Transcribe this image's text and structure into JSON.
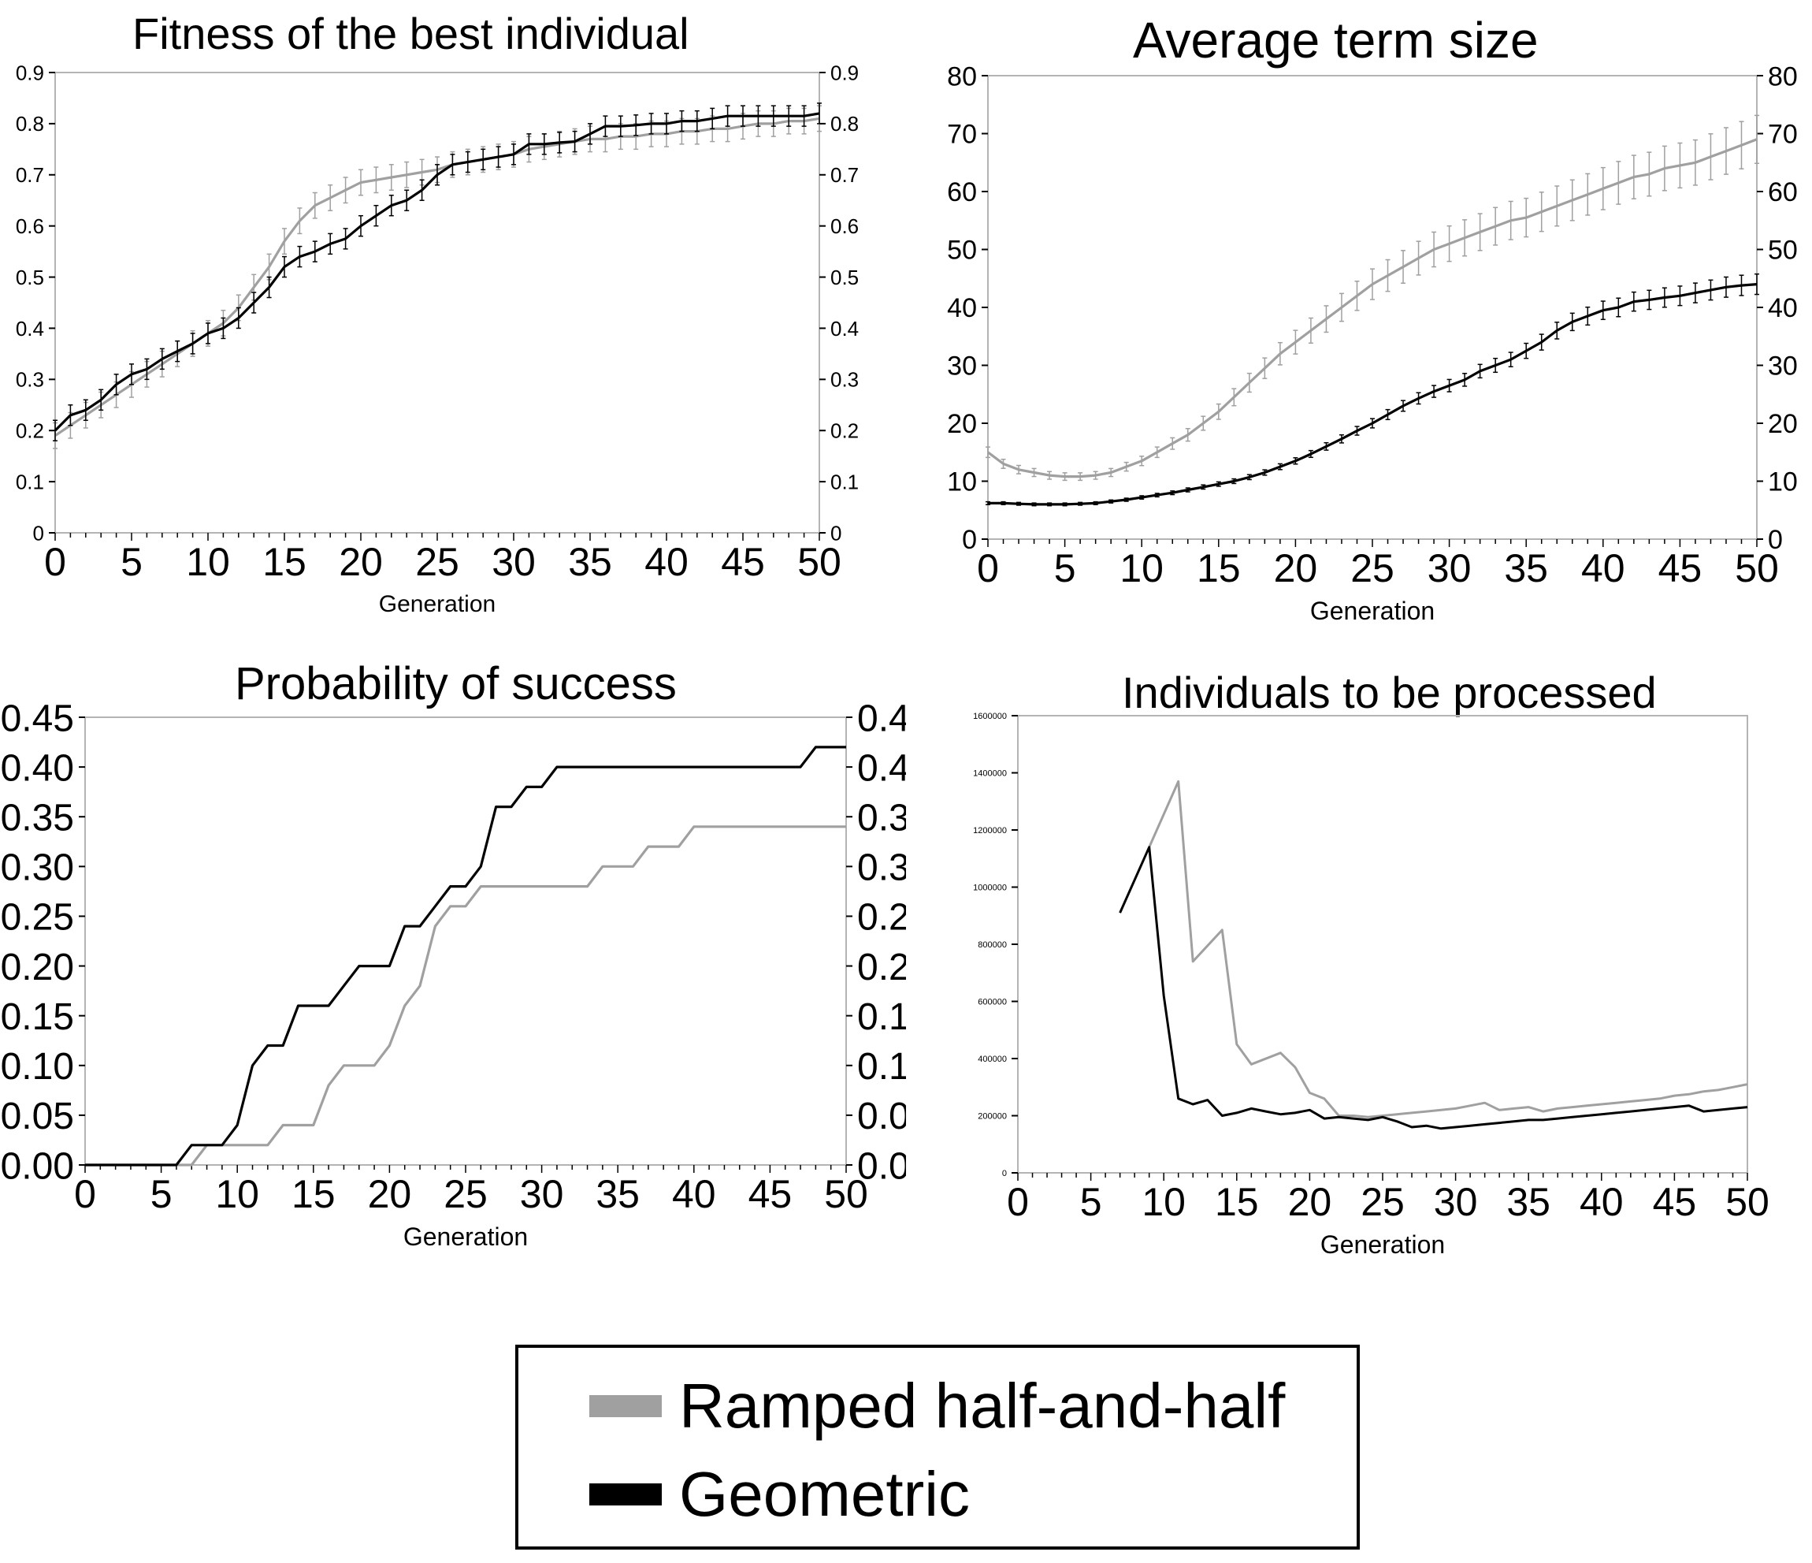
{
  "colors": {
    "ramped": "#a0a0a0",
    "geometric": "#000000"
  },
  "legend": {
    "ramped_label": "Ramped half-and-half",
    "geometric_label": "Geometric"
  },
  "chart_data": [
    {
      "type": "line",
      "title": "Fitness of the best individual",
      "xlabel": "Generation",
      "ylabel": "",
      "xlim": [
        0,
        50
      ],
      "ylim": [
        0,
        0.9
      ],
      "x_ticks": [
        "0",
        "5",
        "10",
        "15",
        "20",
        "25",
        "30",
        "35",
        "40",
        "45",
        "50"
      ],
      "y_ticks": [
        "0",
        "0.1",
        "0.2",
        "0.3",
        "0.4",
        "0.5",
        "0.6",
        "0.7",
        "0.8",
        "0.9"
      ],
      "error_bars": true,
      "grid": false,
      "x": [
        0,
        1,
        2,
        3,
        4,
        5,
        6,
        7,
        8,
        9,
        10,
        11,
        12,
        13,
        14,
        15,
        16,
        17,
        18,
        19,
        20,
        21,
        22,
        23,
        24,
        25,
        26,
        27,
        28,
        29,
        30,
        31,
        32,
        33,
        34,
        35,
        36,
        37,
        38,
        39,
        40,
        41,
        42,
        43,
        44,
        45,
        46,
        47,
        48,
        49,
        50
      ],
      "series": [
        {
          "name": "Ramped half-and-half",
          "color_key": "ramped",
          "err": 0.025,
          "values": [
            0.19,
            0.21,
            0.23,
            0.25,
            0.27,
            0.29,
            0.31,
            0.33,
            0.35,
            0.37,
            0.39,
            0.41,
            0.44,
            0.48,
            0.52,
            0.57,
            0.61,
            0.64,
            0.655,
            0.67,
            0.685,
            0.69,
            0.695,
            0.7,
            0.705,
            0.71,
            0.72,
            0.725,
            0.73,
            0.735,
            0.74,
            0.75,
            0.755,
            0.76,
            0.765,
            0.77,
            0.77,
            0.775,
            0.775,
            0.78,
            0.78,
            0.785,
            0.785,
            0.79,
            0.79,
            0.795,
            0.8,
            0.8,
            0.805,
            0.805,
            0.81
          ]
        },
        {
          "name": "Geometric",
          "color_key": "geometric",
          "err": 0.02,
          "values": [
            0.2,
            0.23,
            0.24,
            0.26,
            0.29,
            0.31,
            0.32,
            0.34,
            0.355,
            0.37,
            0.39,
            0.4,
            0.42,
            0.45,
            0.48,
            0.52,
            0.54,
            0.55,
            0.565,
            0.575,
            0.6,
            0.62,
            0.64,
            0.65,
            0.67,
            0.7,
            0.72,
            0.725,
            0.73,
            0.735,
            0.74,
            0.76,
            0.76,
            0.763,
            0.765,
            0.78,
            0.795,
            0.795,
            0.797,
            0.8,
            0.8,
            0.805,
            0.805,
            0.81,
            0.815,
            0.815,
            0.815,
            0.815,
            0.815,
            0.815,
            0.82
          ]
        }
      ]
    },
    {
      "type": "line",
      "title": "Average term size",
      "xlabel": "Generation",
      "ylabel": "",
      "xlim": [
        0,
        50
      ],
      "ylim": [
        0,
        80
      ],
      "x_ticks": [
        "0",
        "5",
        "10",
        "15",
        "20",
        "25",
        "30",
        "35",
        "40",
        "45",
        "50"
      ],
      "y_ticks": [
        "0",
        "10",
        "20",
        "30",
        "40",
        "50",
        "60",
        "70",
        "80"
      ],
      "error_bars": true,
      "grid": false,
      "x": [
        0,
        1,
        2,
        3,
        4,
        5,
        6,
        7,
        8,
        9,
        10,
        11,
        12,
        13,
        14,
        15,
        16,
        17,
        18,
        19,
        20,
        21,
        22,
        23,
        24,
        25,
        26,
        27,
        28,
        29,
        30,
        31,
        32,
        33,
        34,
        35,
        36,
        37,
        38,
        39,
        40,
        41,
        42,
        43,
        44,
        45,
        46,
        47,
        48,
        49,
        50
      ],
      "series": [
        {
          "name": "Ramped half-and-half",
          "color_key": "ramped",
          "err_frac": 0.06,
          "values": [
            15,
            13,
            12,
            11.5,
            11,
            10.8,
            10.8,
            11,
            11.5,
            12.5,
            13.5,
            15,
            16.5,
            18,
            20,
            22,
            24.5,
            27,
            29.5,
            32,
            34,
            36,
            38,
            40,
            42,
            44,
            45.5,
            47,
            48.5,
            50,
            51,
            52,
            53,
            54,
            55,
            55.5,
            56.5,
            57.5,
            58.5,
            59.5,
            60.5,
            61.5,
            62.5,
            63,
            64,
            64.5,
            65,
            66,
            67,
            68,
            69
          ]
        },
        {
          "name": "Geometric",
          "color_key": "geometric",
          "err_frac": 0.04,
          "values": [
            6.2,
            6.2,
            6.1,
            6,
            6,
            6,
            6.1,
            6.2,
            6.5,
            6.8,
            7.2,
            7.6,
            8,
            8.5,
            9,
            9.5,
            10,
            10.7,
            11.5,
            12.5,
            13.5,
            14.7,
            16,
            17.3,
            18.7,
            20,
            21.5,
            23,
            24.3,
            25.5,
            26.5,
            27.5,
            29,
            30,
            31,
            32.5,
            34,
            36,
            37.5,
            38.5,
            39.5,
            40,
            41,
            41.3,
            41.7,
            42,
            42.5,
            43,
            43.5,
            43.8,
            44
          ]
        }
      ]
    },
    {
      "type": "line",
      "title": "Probability of success",
      "xlabel": "Generation",
      "ylabel": "",
      "xlim": [
        0,
        50
      ],
      "ylim": [
        0,
        0.45
      ],
      "x_ticks": [
        "0",
        "5",
        "10",
        "15",
        "20",
        "25",
        "30",
        "35",
        "40",
        "45",
        "50"
      ],
      "y_ticks": [
        "0.00",
        "0.05",
        "0.10",
        "0.15",
        "0.20",
        "0.25",
        "0.30",
        "0.35",
        "0.40",
        "0.45"
      ],
      "grid": false,
      "x": [
        0,
        1,
        2,
        3,
        4,
        5,
        6,
        7,
        8,
        9,
        10,
        11,
        12,
        13,
        14,
        15,
        16,
        17,
        18,
        19,
        20,
        21,
        22,
        23,
        24,
        25,
        26,
        27,
        28,
        29,
        30,
        31,
        32,
        33,
        34,
        35,
        36,
        37,
        38,
        39,
        40,
        41,
        42,
        43,
        44,
        45,
        46,
        47,
        48,
        49,
        50
      ],
      "series": [
        {
          "name": "Ramped half-and-half",
          "color_key": "ramped",
          "values": [
            0,
            0,
            0,
            0,
            0,
            0,
            0,
            0,
            0.02,
            0.02,
            0.02,
            0.02,
            0.02,
            0.04,
            0.04,
            0.04,
            0.08,
            0.1,
            0.1,
            0.1,
            0.12,
            0.16,
            0.18,
            0.24,
            0.26,
            0.26,
            0.28,
            0.28,
            0.28,
            0.28,
            0.28,
            0.28,
            0.28,
            0.28,
            0.3,
            0.3,
            0.3,
            0.32,
            0.32,
            0.32,
            0.34,
            0.34,
            0.34,
            0.34,
            0.34,
            0.34,
            0.34,
            0.34,
            0.34,
            0.34,
            0.34
          ]
        },
        {
          "name": "Geometric",
          "color_key": "geometric",
          "values": [
            0,
            0,
            0,
            0,
            0,
            0,
            0,
            0.02,
            0.02,
            0.02,
            0.04,
            0.1,
            0.12,
            0.12,
            0.16,
            0.16,
            0.16,
            0.18,
            0.2,
            0.2,
            0.2,
            0.24,
            0.24,
            0.26,
            0.28,
            0.28,
            0.3,
            0.36,
            0.36,
            0.38,
            0.38,
            0.4,
            0.4,
            0.4,
            0.4,
            0.4,
            0.4,
            0.4,
            0.4,
            0.4,
            0.4,
            0.4,
            0.4,
            0.4,
            0.4,
            0.4,
            0.4,
            0.4,
            0.42,
            0.42,
            0.42
          ]
        }
      ]
    },
    {
      "type": "line",
      "title": "Individuals to be processed",
      "xlabel": "Generation",
      "ylabel": "",
      "xlim": [
        0,
        50
      ],
      "ylim": [
        0,
        1600000
      ],
      "x_ticks": [
        "0",
        "5",
        "10",
        "15",
        "20",
        "25",
        "30",
        "35",
        "40",
        "45",
        "50"
      ],
      "y_ticks": [
        "0",
        "200000",
        "400000",
        "600000",
        "800000",
        "1000000",
        "1200000",
        "1400000",
        "1600000"
      ],
      "grid": false,
      "series": [
        {
          "name": "Ramped half-and-half",
          "color_key": "ramped",
          "x": [
            9,
            11,
            12,
            14,
            15,
            16,
            18,
            19,
            20,
            21,
            22,
            23,
            24,
            25,
            26,
            27,
            28,
            29,
            30,
            31,
            32,
            33,
            34,
            35,
            36,
            37,
            38,
            39,
            40,
            41,
            42,
            43,
            44,
            45,
            46,
            47,
            48,
            49,
            50
          ],
          "values": [
            1140000,
            1370000,
            740000,
            850000,
            450000,
            380000,
            420000,
            370000,
            280000,
            260000,
            200000,
            200000,
            195000,
            200000,
            205000,
            210000,
            215000,
            220000,
            225000,
            235000,
            245000,
            220000,
            225000,
            230000,
            215000,
            225000,
            230000,
            235000,
            240000,
            245000,
            250000,
            255000,
            260000,
            270000,
            275000,
            285000,
            290000,
            300000,
            310000
          ]
        },
        {
          "name": "Geometric",
          "color_key": "geometric",
          "x": [
            7,
            9,
            10,
            11,
            12,
            13,
            14,
            15,
            16,
            17,
            18,
            19,
            20,
            21,
            22,
            23,
            24,
            25,
            26,
            27,
            28,
            29,
            30,
            31,
            32,
            33,
            34,
            35,
            36,
            37,
            38,
            39,
            40,
            41,
            42,
            43,
            44,
            45,
            46,
            47,
            48,
            49,
            50
          ],
          "values": [
            910000,
            1140000,
            620000,
            260000,
            240000,
            255000,
            200000,
            210000,
            225000,
            215000,
            205000,
            210000,
            220000,
            190000,
            195000,
            190000,
            185000,
            195000,
            180000,
            160000,
            165000,
            155000,
            160000,
            165000,
            170000,
            175000,
            180000,
            185000,
            185000,
            190000,
            195000,
            200000,
            205000,
            210000,
            215000,
            220000,
            225000,
            230000,
            235000,
            215000,
            220000,
            225000,
            230000
          ]
        }
      ]
    }
  ]
}
